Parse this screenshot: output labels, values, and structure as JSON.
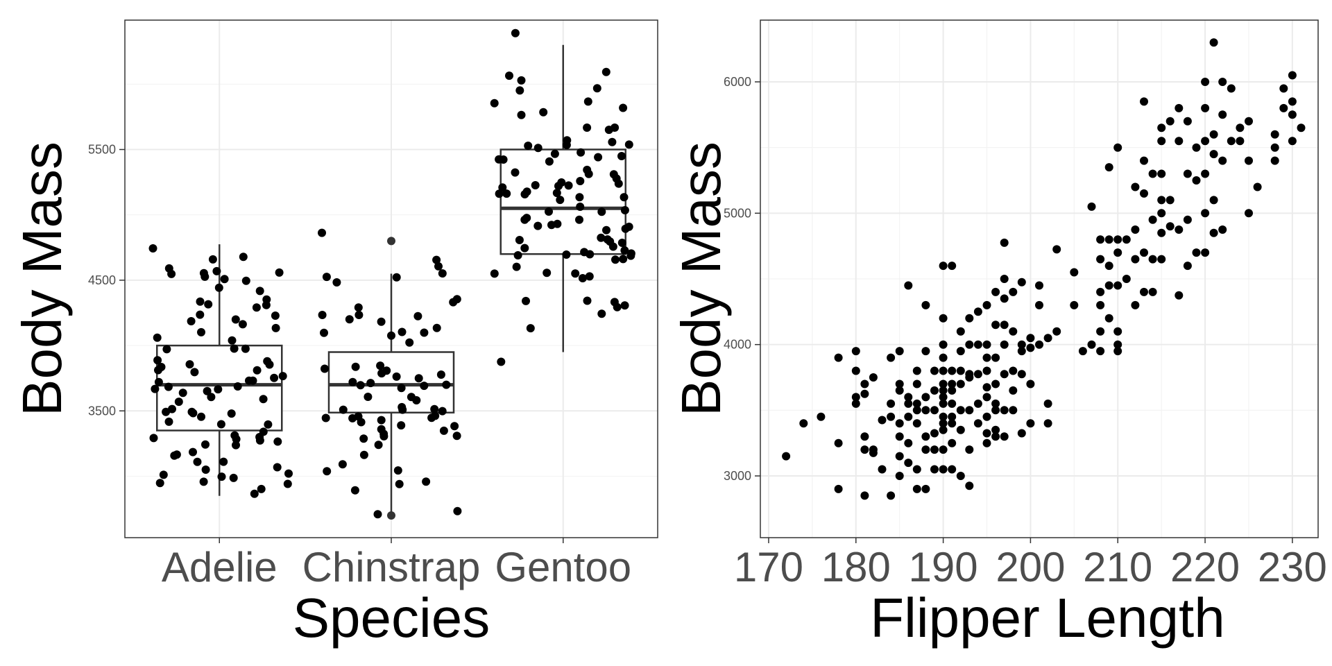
{
  "chart_data": [
    {
      "type": "box",
      "xlabel": "Species",
      "ylabel": "Body Mass",
      "categories": [
        "Adelie",
        "Chinstrap",
        "Gentoo"
      ],
      "yticks": [
        3500,
        4500,
        5500
      ],
      "ylim": [
        2530,
        6490
      ],
      "grid": true,
      "boxes": [
        {
          "category": "Adelie",
          "lower": 2850,
          "q1": 3350,
          "median": 3700,
          "q3": 4000,
          "upper": 4775,
          "outliers": []
        },
        {
          "category": "Chinstrap",
          "lower": 2700,
          "q1": 3487,
          "median": 3700,
          "q3": 3950,
          "upper": 4550,
          "outliers": [
            4800,
            2700
          ]
        },
        {
          "category": "Gentoo",
          "lower": 3950,
          "q1": 4700,
          "median": 5050,
          "q3": 5500,
          "upper": 6300,
          "outliers": []
        }
      ],
      "jitter_points": {
        "Adelie": [
          4350,
          4300,
          4250,
          4200,
          4100,
          4050,
          4000,
          3950,
          3900,
          3850,
          3800,
          3750,
          3700,
          3650,
          3600,
          3550,
          3500,
          3450,
          3400,
          3350,
          3300,
          3250,
          3200,
          3150,
          3100,
          3050,
          3000,
          2950,
          2900,
          2850,
          4400,
          4450,
          4500,
          4550,
          4600,
          4650,
          4700,
          4750,
          4300,
          4200,
          4100,
          3900,
          3800,
          3700,
          3600,
          3500,
          3400,
          3300,
          3200,
          3100,
          3000,
          2900,
          4150,
          3950,
          3750,
          3550,
          3350,
          3150,
          2950,
          4250,
          4050,
          3850,
          3650,
          3450,
          3250,
          3050,
          4350,
          3800,
          3700,
          3600,
          3450,
          3350,
          3250,
          3150,
          3050,
          4475,
          4525,
          4625,
          4675,
          4725,
          4775,
          4200,
          3900,
          3700,
          3500,
          3300
        ],
        "Chinstrap": [
          4550,
          4500,
          4450,
          4400,
          4300,
          4250,
          4200,
          4150,
          4100,
          4050,
          4000,
          3950,
          3900,
          3850,
          3800,
          3750,
          3700,
          3650,
          3600,
          3550,
          3500,
          3450,
          3400,
          3350,
          3300,
          3250,
          3200,
          3150,
          3050,
          2900,
          2700,
          2700,
          4800,
          4600,
          3675,
          3775,
          3475,
          3325,
          3725,
          3525,
          3375,
          3575,
          3250,
          3425,
          3275,
          3625,
          3800,
          3650,
          3400,
          3200,
          2900,
          3100,
          3300,
          3500,
          3700,
          4000,
          4150,
          4250,
          4350,
          3900,
          3600,
          3400,
          3550,
          3700,
          3800,
          4400,
          4450,
          4100
        ],
        "Gentoo": [
          6300,
          6050,
          6000,
          5950,
          5850,
          5800,
          5750,
          5700,
          5650,
          5600,
          5550,
          5500,
          5450,
          5400,
          5350,
          5300,
          5250,
          5200,
          5150,
          5100,
          5050,
          5000,
          4950,
          4900,
          4850,
          4800,
          4750,
          4700,
          4650,
          4600,
          4550,
          4500,
          4450,
          4400,
          4375,
          4350,
          4300,
          4200,
          4150,
          3950,
          4850,
          4950,
          5050,
          5150,
          5250,
          5350,
          5450,
          5550,
          5650,
          5750,
          5850,
          5950,
          4900,
          5000,
          5100,
          5200,
          5300,
          5400,
          5500,
          5600,
          5700,
          5800,
          4750,
          4700,
          4650,
          4600,
          4800,
          5000,
          5200,
          5400,
          4400,
          4450,
          4500,
          4550,
          4625,
          4675,
          4725,
          4775,
          4825,
          4875,
          4925,
          4975,
          5025,
          5075,
          5125,
          5175,
          5225,
          5275,
          5325,
          5375
        ]
      }
    },
    {
      "type": "scatter",
      "xlabel": "Flipper Length",
      "ylabel": "Body Mass",
      "xticks": [
        170,
        180,
        190,
        200,
        210,
        220,
        230
      ],
      "yticks": [
        3000,
        4000,
        5000,
        6000
      ],
      "xlim": [
        169.05,
        232.95
      ],
      "ylim": [
        2530,
        6470
      ],
      "grid": true,
      "points": [
        [
          172,
          3150
        ],
        [
          174,
          3400
        ],
        [
          176,
          3450
        ],
        [
          178,
          3250
        ],
        [
          178,
          2900
        ],
        [
          178,
          3900
        ],
        [
          180,
          3950
        ],
        [
          180,
          3800
        ],
        [
          180,
          3600
        ],
        [
          180,
          3550
        ],
        [
          181,
          3700
        ],
        [
          181,
          3625
        ],
        [
          181,
          3300
        ],
        [
          181,
          3200
        ],
        [
          181,
          2850
        ],
        [
          182,
          3750
        ],
        [
          182,
          3200
        ],
        [
          182,
          3175
        ],
        [
          183,
          3425
        ],
        [
          183,
          3050
        ],
        [
          184,
          3550
        ],
        [
          184,
          3900
        ],
        [
          184,
          3450
        ],
        [
          184,
          2850
        ],
        [
          185,
          3950
        ],
        [
          185,
          3700
        ],
        [
          185,
          3650
        ],
        [
          185,
          3400
        ],
        [
          185,
          3300
        ],
        [
          185,
          3150
        ],
        [
          185,
          3000
        ],
        [
          186,
          3600
        ],
        [
          186,
          3550
        ],
        [
          186,
          3450
        ],
        [
          186,
          3100
        ],
        [
          186,
          4450
        ],
        [
          186,
          3250
        ],
        [
          187,
          3800
        ],
        [
          187,
          3700
        ],
        [
          187,
          3550
        ],
        [
          187,
          3400
        ],
        [
          187,
          3500
        ],
        [
          187,
          3050
        ],
        [
          187,
          2900
        ],
        [
          188,
          3600
        ],
        [
          188,
          3500
        ],
        [
          188,
          3300
        ],
        [
          188,
          3200
        ],
        [
          188,
          2900
        ],
        [
          188,
          3950
        ],
        [
          188,
          4300
        ],
        [
          189,
          3800
        ],
        [
          189,
          3650
        ],
        [
          189,
          3500
        ],
        [
          189,
          3325
        ],
        [
          189,
          3200
        ],
        [
          189,
          3050
        ],
        [
          190,
          4600
        ],
        [
          190,
          4200
        ],
        [
          190,
          4000
        ],
        [
          190,
          3900
        ],
        [
          190,
          3800
        ],
        [
          190,
          3700
        ],
        [
          190,
          3650
        ],
        [
          190,
          3600
        ],
        [
          190,
          3550
        ],
        [
          190,
          3450
        ],
        [
          190,
          3400
        ],
        [
          190,
          3350
        ],
        [
          190,
          3200
        ],
        [
          190,
          3050
        ],
        [
          191,
          4600
        ],
        [
          191,
          3800
        ],
        [
          191,
          3700
        ],
        [
          191,
          3650
        ],
        [
          191,
          3550
        ],
        [
          191,
          3450
        ],
        [
          191,
          3400
        ],
        [
          191,
          3250
        ],
        [
          191,
          3050
        ],
        [
          192,
          4100
        ],
        [
          192,
          3950
        ],
        [
          192,
          3800
        ],
        [
          192,
          3700
        ],
        [
          192,
          3500
        ],
        [
          192,
          3350
        ],
        [
          192,
          3000
        ],
        [
          193,
          4200
        ],
        [
          193,
          4000
        ],
        [
          193,
          3775
        ],
        [
          193,
          3750
        ],
        [
          193,
          3500
        ],
        [
          193,
          3200
        ],
        [
          193,
          2925
        ],
        [
          194,
          4250
        ],
        [
          194,
          4000
        ],
        [
          194,
          3775
        ],
        [
          194,
          3550
        ],
        [
          194,
          3400
        ],
        [
          195,
          4300
        ],
        [
          195,
          4000
        ],
        [
          195,
          3900
        ],
        [
          195,
          3800
        ],
        [
          195,
          3675
        ],
        [
          195,
          3600
        ],
        [
          195,
          3450
        ],
        [
          195,
          3325
        ],
        [
          195,
          3250
        ],
        [
          196,
          4400
        ],
        [
          196,
          4150
        ],
        [
          196,
          3900
        ],
        [
          196,
          3700
        ],
        [
          196,
          3550
        ],
        [
          196,
          3500
        ],
        [
          196,
          3350
        ],
        [
          196,
          3300
        ],
        [
          197,
          4775
        ],
        [
          197,
          4500
        ],
        [
          197,
          4350
        ],
        [
          197,
          4150
        ],
        [
          197,
          4000
        ],
        [
          197,
          3775
        ],
        [
          197,
          3500
        ],
        [
          197,
          3300
        ],
        [
          198,
          4400
        ],
        [
          198,
          4100
        ],
        [
          198,
          3800
        ],
        [
          198,
          3650
        ],
        [
          198,
          3500
        ],
        [
          199,
          4475
        ],
        [
          199,
          4000
        ],
        [
          199,
          3950
        ],
        [
          199,
          3775
        ],
        [
          199,
          3325
        ],
        [
          200,
          4050
        ],
        [
          200,
          3975
        ],
        [
          200,
          3700
        ],
        [
          200,
          3400
        ],
        [
          201,
          4450
        ],
        [
          201,
          4300
        ],
        [
          201,
          4000
        ],
        [
          202,
          4050
        ],
        [
          202,
          3550
        ],
        [
          202,
          3400
        ],
        [
          203,
          4725
        ],
        [
          203,
          4100
        ],
        [
          205,
          4550
        ],
        [
          205,
          4300
        ],
        [
          206,
          3950
        ],
        [
          207,
          5050
        ],
        [
          207,
          4000
        ],
        [
          208,
          4800
        ],
        [
          208,
          4650
        ],
        [
          208,
          4400
        ],
        [
          208,
          4300
        ],
        [
          208,
          4100
        ],
        [
          208,
          3950
        ],
        [
          209,
          5350
        ],
        [
          209,
          4800
        ],
        [
          209,
          4600
        ],
        [
          209,
          4450
        ],
        [
          209,
          4200
        ],
        [
          210,
          5500
        ],
        [
          210,
          4800
        ],
        [
          210,
          4700
        ],
        [
          210,
          4450
        ],
        [
          210,
          4100
        ],
        [
          210,
          4000
        ],
        [
          210,
          3950
        ],
        [
          211,
          4800
        ],
        [
          211,
          4500
        ],
        [
          212,
          5200
        ],
        [
          212,
          4875
        ],
        [
          212,
          4650
        ],
        [
          212,
          4300
        ],
        [
          213,
          5850
        ],
        [
          213,
          5400
        ],
        [
          213,
          5150
        ],
        [
          213,
          4700
        ],
        [
          213,
          4400
        ],
        [
          214,
          5300
        ],
        [
          214,
          4950
        ],
        [
          214,
          4650
        ],
        [
          214,
          4400
        ],
        [
          215,
          5650
        ],
        [
          215,
          5550
        ],
        [
          215,
          5300
        ],
        [
          215,
          5100
        ],
        [
          215,
          5000
        ],
        [
          215,
          4850
        ],
        [
          215,
          4650
        ],
        [
          216,
          5700
        ],
        [
          216,
          5100
        ],
        [
          216,
          4900
        ],
        [
          217,
          5800
        ],
        [
          217,
          5550
        ],
        [
          217,
          4875
        ],
        [
          217,
          4375
        ],
        [
          218,
          5700
        ],
        [
          218,
          5300
        ],
        [
          218,
          4950
        ],
        [
          218,
          4600
        ],
        [
          219,
          5500
        ],
        [
          219,
          5250
        ],
        [
          219,
          4700
        ],
        [
          220,
          6000
        ],
        [
          220,
          5800
        ],
        [
          220,
          5550
        ],
        [
          220,
          5300
        ],
        [
          220,
          5000
        ],
        [
          220,
          4700
        ],
        [
          221,
          6300
        ],
        [
          221,
          5600
        ],
        [
          221,
          5450
        ],
        [
          221,
          5100
        ],
        [
          221,
          4850
        ],
        [
          222,
          6000
        ],
        [
          222,
          5750
        ],
        [
          222,
          5400
        ],
        [
          222,
          4875
        ],
        [
          223,
          5950
        ],
        [
          223,
          5550
        ],
        [
          224,
          5650
        ],
        [
          224,
          5550
        ],
        [
          225,
          5700
        ],
        [
          225,
          5400
        ],
        [
          225,
          5000
        ],
        [
          226,
          5200
        ],
        [
          228,
          5600
        ],
        [
          228,
          5500
        ],
        [
          228,
          5400
        ],
        [
          229,
          5950
        ],
        [
          229,
          5800
        ],
        [
          230,
          6050
        ],
        [
          230,
          5850
        ],
        [
          230,
          5750
        ],
        [
          230,
          5550
        ],
        [
          231,
          5650
        ]
      ]
    }
  ]
}
